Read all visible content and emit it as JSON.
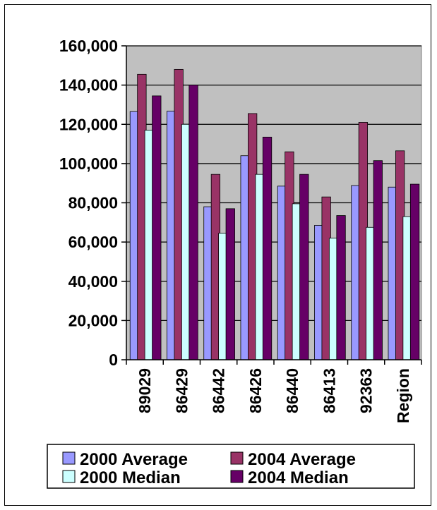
{
  "chart_data": {
    "type": "bar",
    "title": "",
    "xlabel": "",
    "ylabel": "",
    "categories": [
      "89029",
      "86429",
      "86442",
      "86426",
      "86440",
      "86413",
      "92363",
      "Region"
    ],
    "series": [
      {
        "name": "2000 Average",
        "color": "#9999ff",
        "values": [
          126500,
          126700,
          78000,
          104000,
          88500,
          68500,
          88800,
          88000
        ]
      },
      {
        "name": "2004 Average",
        "color": "#993366",
        "values": [
          145500,
          148000,
          94500,
          125500,
          106000,
          83000,
          121000,
          106500
        ]
      },
      {
        "name": "2000 Median",
        "color": "#ccffff",
        "values": [
          117000,
          120000,
          64500,
          94500,
          79500,
          62000,
          67500,
          73000
        ]
      },
      {
        "name": "2004 Median",
        "color": "#660066",
        "values": [
          134500,
          140000,
          77000,
          113500,
          94500,
          73500,
          101500,
          89500
        ]
      }
    ],
    "ylim": [
      0,
      160000
    ],
    "yticks": [
      "0",
      "20,000",
      "40,000",
      "60,000",
      "80,000",
      "100,000",
      "120,000",
      "140,000",
      "160,000"
    ],
    "ytick_values": [
      0,
      20000,
      40000,
      60000,
      80000,
      100000,
      120000,
      140000,
      160000
    ],
    "grid": true,
    "plot_background": "#c0c0c0",
    "legend_position": "bottom"
  }
}
